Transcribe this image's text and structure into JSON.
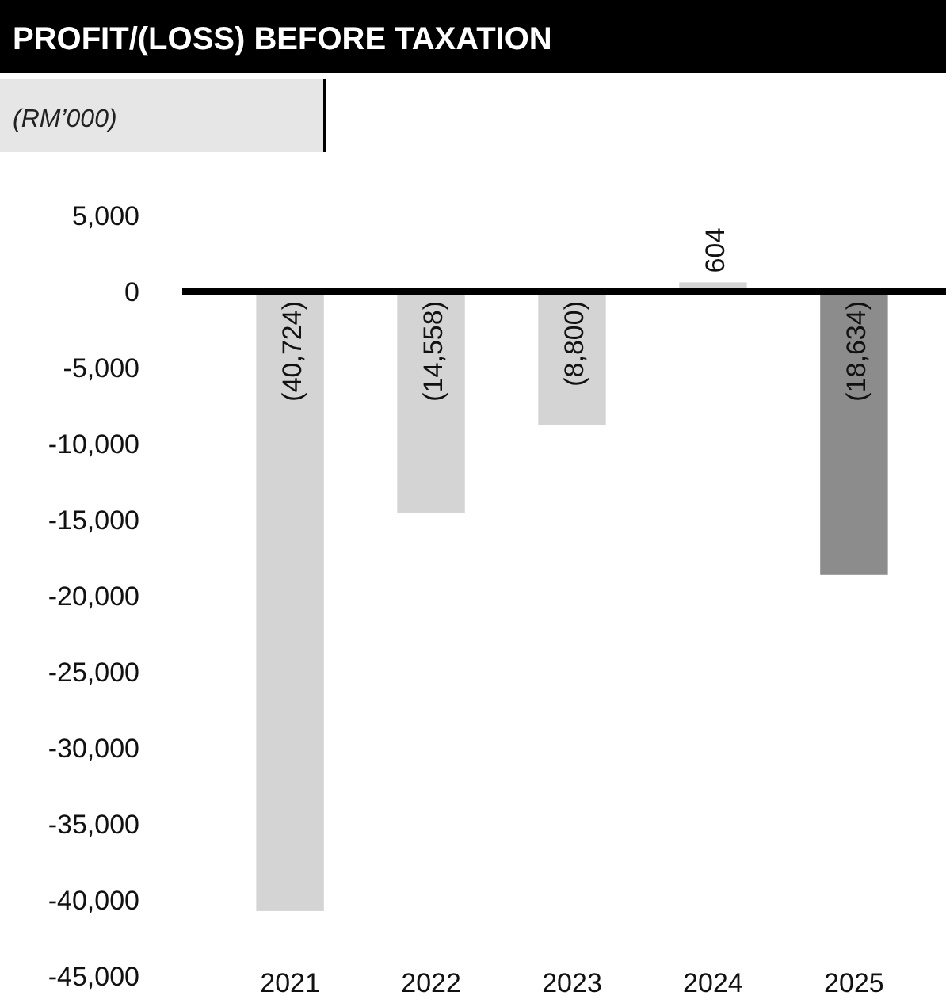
{
  "chart_data": {
    "type": "bar",
    "title": "PROFIT/(LOSS) BEFORE TAXATION",
    "subtitle": "(RM’000)",
    "categories": [
      "2021",
      "2022",
      "2023",
      "2024",
      "2025"
    ],
    "values": [
      -40724,
      -14558,
      -8800,
      604,
      -18634
    ],
    "colors": [
      "#d4d4d4",
      "#d4d4d4",
      "#d4d4d4",
      "#d4d4d4",
      "#8c8c8c"
    ],
    "value_labels": [
      "(40,724)",
      "(14,558)",
      "(8,800)",
      "604",
      "(18,634)"
    ],
    "ylim": [
      -45000,
      5000
    ],
    "yticks": [
      {
        "value": 5000,
        "label": "5,000"
      },
      0,
      {
        "value": -5000,
        "label": "-5,000"
      },
      {
        "value": -10000,
        "label": "-10,000"
      },
      {
        "value": -15000,
        "label": "-15,000"
      },
      {
        "value": -20000,
        "label": "-20,000"
      },
      {
        "value": -25000,
        "label": "-25,000"
      },
      {
        "value": -30000,
        "label": "-30,000"
      },
      {
        "value": -35000,
        "label": "-35,000"
      },
      {
        "value": -40000,
        "label": "-40,000"
      },
      {
        "value": -45000,
        "label": "-45,000"
      }
    ]
  }
}
